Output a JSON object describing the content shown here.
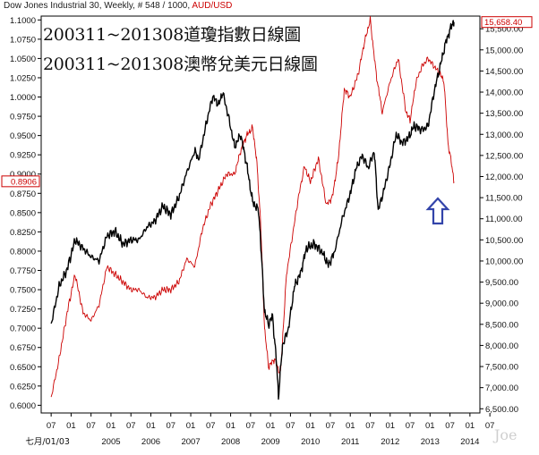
{
  "header": {
    "instrument": "Dow Jones Industrial 30",
    "meta": ", Weekly, # 548 / 1000,",
    "overlay_name": "AUD/USD"
  },
  "annotations": {
    "title_line1": "200311~201308道瓊指數日線圖",
    "title_line2": "200311~201308澳幣兌美元日線圖",
    "watermark": "Joe",
    "arrow": "up-arrow (hollow, blue)"
  },
  "colors": {
    "dow_series": "#000000",
    "aud_series": "#cc0000",
    "arrow": "#3344aa",
    "right_axis_text": "#cc0000"
  },
  "chart_data": {
    "type": "line",
    "x_axis": {
      "month_ticks": [
        "07",
        "01",
        "07",
        "01",
        "07",
        "01",
        "07",
        "01",
        "07",
        "01",
        "07",
        "01",
        "07",
        "01",
        "07",
        "01",
        "07",
        "01",
        "07",
        "01",
        "07",
        "01",
        "07"
      ],
      "first_date_label": "七月/01/03",
      "year_labels": [
        "2005",
        "2006",
        "2007",
        "2008",
        "2009",
        "2010",
        "2011",
        "2012",
        "2013",
        "2014"
      ]
    },
    "left_axis": {
      "series": "AUD/USD",
      "ylim": [
        0.59,
        1.105
      ],
      "tick_labels": [
        "1.1000",
        "1.0750",
        "1.0500",
        "1.0250",
        "1.0000",
        "0.9750",
        "0.9500",
        "0.9250",
        "0.9000",
        "0.8750",
        "0.8500",
        "0.8250",
        "0.8000",
        "0.7750",
        "0.7500",
        "0.7250",
        "0.7000",
        "0.6750",
        "0.6500",
        "0.6250",
        "0.6000"
      ],
      "tick_values": [
        1.1,
        1.075,
        1.05,
        1.025,
        1.0,
        0.975,
        0.95,
        0.925,
        0.9,
        0.875,
        0.85,
        0.825,
        0.8,
        0.775,
        0.75,
        0.725,
        0.7,
        0.675,
        0.65,
        0.625,
        0.6
      ],
      "last_value_label": "0.8906",
      "last_value": 0.8906
    },
    "right_axis": {
      "series": "Dow Jones Industrial 30",
      "ylim": [
        6400,
        15800
      ],
      "tick_labels": [
        "15,500.00",
        "15,000.00",
        "14,500.00",
        "14,000.00",
        "13,500.00",
        "13,000.00",
        "12,500.00",
        "12,000.00",
        "11,500.00",
        "11,000.00",
        "10,500.00",
        "10,000.00",
        "9,500.00",
        "9,000.00",
        "8,500.00",
        "8,000.00",
        "7,500.00",
        "7,000.00",
        "6,500.00"
      ],
      "tick_values": [
        15500,
        15000,
        14500,
        14000,
        13500,
        13000,
        12500,
        12000,
        11500,
        11000,
        10500,
        10000,
        9500,
        9000,
        8500,
        8000,
        7500,
        7000,
        6500
      ],
      "last_value_label": "15,658.40",
      "last_value": 15658.4
    },
    "series": [
      {
        "name": "Dow Jones Industrial 30",
        "axis": "right",
        "x": [
          2003.5,
          2003.7,
          2003.9,
          2004.1,
          2004.3,
          2004.5,
          2004.7,
          2004.9,
          2005.1,
          2005.3,
          2005.5,
          2005.7,
          2005.9,
          2006.1,
          2006.3,
          2006.5,
          2006.7,
          2006.9,
          2007.1,
          2007.2,
          2007.4,
          2007.55,
          2007.7,
          2007.8,
          2007.95,
          2008.1,
          2008.25,
          2008.4,
          2008.55,
          2008.7,
          2008.75,
          2008.85,
          2008.95,
          2009.05,
          2009.15,
          2009.2,
          2009.3,
          2009.45,
          2009.6,
          2009.75,
          2009.9,
          2010.1,
          2010.3,
          2010.45,
          2010.6,
          2010.8,
          2011.0,
          2011.15,
          2011.3,
          2011.45,
          2011.6,
          2011.7,
          2011.85,
          2012.0,
          2012.15,
          2012.3,
          2012.45,
          2012.6,
          2012.8,
          2012.95,
          2013.1,
          2013.25,
          2013.4,
          2013.55,
          2013.6
        ],
        "values": [
          8500,
          9400,
          9800,
          10500,
          10300,
          10100,
          10000,
          10600,
          10700,
          10400,
          10500,
          10500,
          10800,
          10950,
          11300,
          11100,
          11500,
          12100,
          12600,
          12400,
          13300,
          13900,
          13700,
          14000,
          13400,
          12700,
          13000,
          12300,
          11400,
          11200,
          10500,
          8800,
          8500,
          8700,
          7600,
          6800,
          8000,
          8400,
          9400,
          9700,
          10300,
          10400,
          10200,
          9900,
          10200,
          11000,
          11600,
          12200,
          12500,
          12200,
          12600,
          11200,
          11700,
          12300,
          13000,
          12800,
          12900,
          13200,
          13100,
          13200,
          14000,
          14600,
          15200,
          15600,
          15658
        ]
      },
      {
        "name": "AUD/USD",
        "axis": "left",
        "x": [
          2003.5,
          2003.7,
          2003.9,
          2004.1,
          2004.3,
          2004.5,
          2004.7,
          2004.9,
          2005.1,
          2005.3,
          2005.5,
          2005.7,
          2005.9,
          2006.1,
          2006.3,
          2006.5,
          2006.7,
          2006.9,
          2007.1,
          2007.3,
          2007.5,
          2007.7,
          2007.9,
          2008.1,
          2008.25,
          2008.4,
          2008.55,
          2008.65,
          2008.75,
          2008.85,
          2008.95,
          2009.1,
          2009.25,
          2009.4,
          2009.55,
          2009.7,
          2009.85,
          2010.0,
          2010.2,
          2010.4,
          2010.55,
          2010.7,
          2010.85,
          2011.0,
          2011.2,
          2011.35,
          2011.5,
          2011.65,
          2011.8,
          2012.0,
          2012.2,
          2012.4,
          2012.5,
          2012.65,
          2012.8,
          2012.95,
          2013.1,
          2013.25,
          2013.35,
          2013.45,
          2013.55,
          2013.6
        ],
        "values": [
          0.61,
          0.66,
          0.72,
          0.77,
          0.72,
          0.71,
          0.73,
          0.78,
          0.77,
          0.76,
          0.75,
          0.75,
          0.74,
          0.74,
          0.75,
          0.75,
          0.76,
          0.79,
          0.78,
          0.83,
          0.86,
          0.88,
          0.9,
          0.9,
          0.93,
          0.95,
          0.96,
          0.92,
          0.84,
          0.7,
          0.65,
          0.66,
          0.64,
          0.77,
          0.82,
          0.87,
          0.91,
          0.89,
          0.92,
          0.86,
          0.87,
          0.92,
          1.01,
          1.0,
          1.03,
          1.07,
          1.1,
          1.03,
          0.98,
          1.02,
          1.05,
          0.98,
          0.97,
          1.02,
          1.04,
          1.05,
          1.04,
          1.03,
          1.02,
          0.94,
          0.91,
          0.89
        ]
      }
    ],
    "grid": false,
    "legend": "none"
  }
}
